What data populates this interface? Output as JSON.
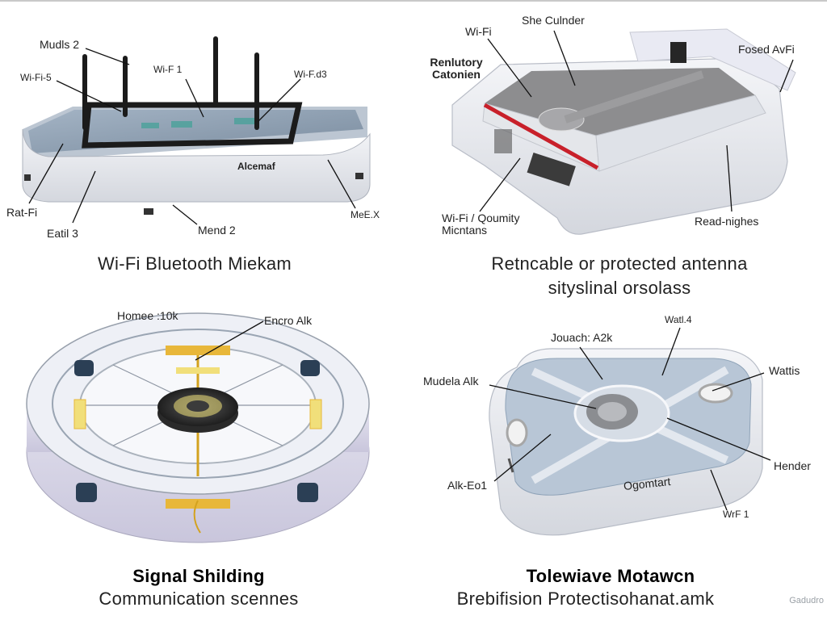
{
  "panels": [
    {
      "labels": [
        "Mudls 2",
        "Wi-F 1",
        "Wi-F.d3",
        "Wi-Fi-5",
        "Alcemaf",
        "Rat-Fi",
        "Eatil 3",
        "Mend 2",
        "MeE.X"
      ],
      "caption_lines": [
        "Wi-Fi Bluetooth Miekam"
      ]
    },
    {
      "labels": [
        "She Culnder",
        "Wi-Fi",
        "Renlutory Catonien",
        "Fosed AvFi",
        "Wi-Fi / Qoumity Micntans",
        "Read-nighes"
      ],
      "caption_lines": [
        "Retncable or protected antenna",
        "sityslinal orsolass"
      ]
    },
    {
      "labels": [
        "Homee :10k",
        "Encro Alk"
      ],
      "caption_lines": [
        "Signal Shilding",
        "Communication scennes"
      ]
    },
    {
      "labels": [
        "Jouach: A2k",
        "Watl.4",
        "Mudela Alk",
        "Wattis",
        "Alk-Eo1",
        "Ogomtart",
        "Hender",
        "WrF 1"
      ],
      "caption_lines": [
        "Tolewiave Motawcn",
        "Brebifision Protectisohanat.amk"
      ]
    }
  ],
  "watermark": "Gadudro",
  "colors": {
    "device_body": "#e9ebf0",
    "panel_blue": "#8fa3b8",
    "gold": "#e8b73a",
    "red_stripe": "#c8202a"
  }
}
